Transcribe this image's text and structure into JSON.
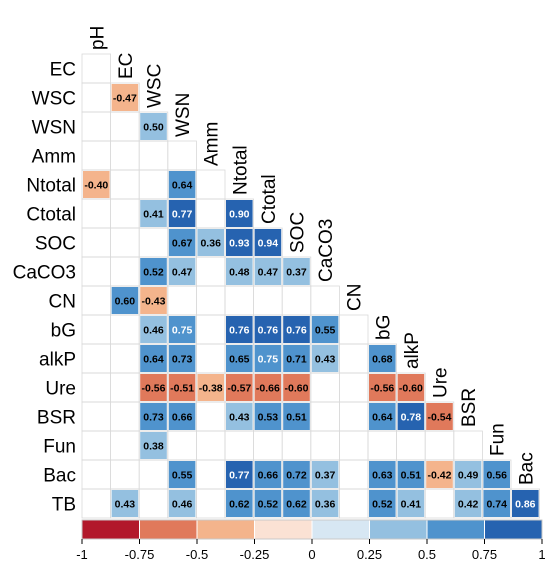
{
  "chart_data": {
    "type": "heatmap",
    "title": "",
    "variables": [
      "pH",
      "EC",
      "WSC",
      "WSN",
      "Amm",
      "Ntotal",
      "Ctotal",
      "SOC",
      "CaCO3",
      "CN",
      "bG",
      "alkP",
      "Ure",
      "BSR",
      "Fun",
      "Bac",
      "TB"
    ],
    "row_labels": [
      "EC",
      "WSC",
      "WSN",
      "Amm",
      "Ntotal",
      "Ctotal",
      "SOC",
      "CaCO3",
      "CN",
      "bG",
      "alkP",
      "Ure",
      "BSR",
      "Fun",
      "Bac",
      "TB"
    ],
    "col_labels": [
      "pH",
      "EC",
      "WSC",
      "WSN",
      "Amm",
      "Ntotal",
      "Ctotal",
      "SOC",
      "CaCO3",
      "CN",
      "bG",
      "alkP",
      "Ure",
      "BSR",
      "Fun",
      "Bac"
    ],
    "layout": "lower-triangle",
    "cells": [
      {
        "row": "WSC",
        "col": "EC",
        "value": -0.47,
        "label": "-0.47"
      },
      {
        "row": "WSN",
        "col": "WSC",
        "value": 0.5,
        "label": "0.50"
      },
      {
        "row": "Ntotal",
        "col": "pH",
        "value": -0.4,
        "label": "-0.40"
      },
      {
        "row": "Ntotal",
        "col": "WSN",
        "value": 0.64,
        "label": "0.64"
      },
      {
        "row": "Ctotal",
        "col": "WSC",
        "value": 0.41,
        "label": "0.41"
      },
      {
        "row": "Ctotal",
        "col": "WSN",
        "value": 0.77,
        "label": "0.77"
      },
      {
        "row": "Ctotal",
        "col": "Ntotal",
        "value": 0.9,
        "label": "0.90"
      },
      {
        "row": "SOC",
        "col": "WSN",
        "value": 0.67,
        "label": "0.67"
      },
      {
        "row": "SOC",
        "col": "Amm",
        "value": 0.36,
        "label": "0.36"
      },
      {
        "row": "SOC",
        "col": "Ntotal",
        "value": 0.93,
        "label": "0.93"
      },
      {
        "row": "SOC",
        "col": "Ctotal",
        "value": 0.94,
        "label": "0.94"
      },
      {
        "row": "CaCO3",
        "col": "WSC",
        "value": 0.52,
        "label": "0.52"
      },
      {
        "row": "CaCO3",
        "col": "WSN",
        "value": 0.47,
        "label": "0.47"
      },
      {
        "row": "CaCO3",
        "col": "Ntotal",
        "value": 0.48,
        "label": "0.48"
      },
      {
        "row": "CaCO3",
        "col": "Ctotal",
        "value": 0.47,
        "label": "0.47"
      },
      {
        "row": "CaCO3",
        "col": "SOC",
        "value": 0.37,
        "label": "0.37"
      },
      {
        "row": "CN",
        "col": "EC",
        "value": 0.6,
        "label": "0.60"
      },
      {
        "row": "CN",
        "col": "WSC",
        "value": -0.43,
        "label": "-0.43"
      },
      {
        "row": "bG",
        "col": "WSC",
        "value": 0.46,
        "label": "0.46"
      },
      {
        "row": "bG",
        "col": "WSN",
        "value": 0.75,
        "label": "0.75"
      },
      {
        "row": "bG",
        "col": "Ntotal",
        "value": 0.76,
        "label": "0.76"
      },
      {
        "row": "bG",
        "col": "Ctotal",
        "value": 0.76,
        "label": "0.76"
      },
      {
        "row": "bG",
        "col": "SOC",
        "value": 0.76,
        "label": "0.76"
      },
      {
        "row": "bG",
        "col": "CaCO3",
        "value": 0.55,
        "label": "0.55"
      },
      {
        "row": "alkP",
        "col": "WSC",
        "value": 0.64,
        "label": "0.64"
      },
      {
        "row": "alkP",
        "col": "WSN",
        "value": 0.73,
        "label": "0.73"
      },
      {
        "row": "alkP",
        "col": "Ntotal",
        "value": 0.65,
        "label": "0.65"
      },
      {
        "row": "alkP",
        "col": "Ctotal",
        "value": 0.75,
        "label": "0.75"
      },
      {
        "row": "alkP",
        "col": "SOC",
        "value": 0.71,
        "label": "0.71"
      },
      {
        "row": "alkP",
        "col": "CaCO3",
        "value": 0.43,
        "label": "0.43"
      },
      {
        "row": "alkP",
        "col": "bG",
        "value": 0.68,
        "label": "0.68"
      },
      {
        "row": "Ure",
        "col": "WSC",
        "value": -0.56,
        "label": "-0.56"
      },
      {
        "row": "Ure",
        "col": "WSN",
        "value": -0.51,
        "label": "-0.51"
      },
      {
        "row": "Ure",
        "col": "Amm",
        "value": -0.38,
        "label": "-0.38"
      },
      {
        "row": "Ure",
        "col": "Ntotal",
        "value": -0.57,
        "label": "-0.57"
      },
      {
        "row": "Ure",
        "col": "Ctotal",
        "value": -0.66,
        "label": "-0.66"
      },
      {
        "row": "Ure",
        "col": "SOC",
        "value": -0.6,
        "label": "-0.60"
      },
      {
        "row": "Ure",
        "col": "bG",
        "value": -0.56,
        "label": "-0.56"
      },
      {
        "row": "Ure",
        "col": "alkP",
        "value": -0.6,
        "label": "-0.60"
      },
      {
        "row": "BSR",
        "col": "WSC",
        "value": 0.73,
        "label": "0.73"
      },
      {
        "row": "BSR",
        "col": "WSN",
        "value": 0.66,
        "label": "0.66"
      },
      {
        "row": "BSR",
        "col": "Ntotal",
        "value": 0.43,
        "label": "0.43"
      },
      {
        "row": "BSR",
        "col": "Ctotal",
        "value": 0.53,
        "label": "0.53"
      },
      {
        "row": "BSR",
        "col": "SOC",
        "value": 0.51,
        "label": "0.51"
      },
      {
        "row": "BSR",
        "col": "bG",
        "value": 0.64,
        "label": "0.64"
      },
      {
        "row": "BSR",
        "col": "alkP",
        "value": 0.78,
        "label": "0.78"
      },
      {
        "row": "BSR",
        "col": "Ure",
        "value": -0.54,
        "label": "-0.54"
      },
      {
        "row": "Fun",
        "col": "WSC",
        "value": 0.38,
        "label": "0.38"
      },
      {
        "row": "Bac",
        "col": "WSN",
        "value": 0.55,
        "label": "0.55"
      },
      {
        "row": "Bac",
        "col": "Ntotal",
        "value": 0.77,
        "label": "0.77"
      },
      {
        "row": "Bac",
        "col": "Ctotal",
        "value": 0.66,
        "label": "0.66"
      },
      {
        "row": "Bac",
        "col": "SOC",
        "value": 0.72,
        "label": "0.72"
      },
      {
        "row": "Bac",
        "col": "CaCO3",
        "value": 0.37,
        "label": "0.37"
      },
      {
        "row": "Bac",
        "col": "bG",
        "value": 0.63,
        "label": "0.63"
      },
      {
        "row": "Bac",
        "col": "alkP",
        "value": 0.51,
        "label": "0.51"
      },
      {
        "row": "Bac",
        "col": "Ure",
        "value": -0.42,
        "label": "-0.42"
      },
      {
        "row": "Bac",
        "col": "BSR",
        "value": 0.49,
        "label": "0.49"
      },
      {
        "row": "Bac",
        "col": "Fun",
        "value": 0.56,
        "label": "0.56"
      },
      {
        "row": "TB",
        "col": "EC",
        "value": 0.43,
        "label": "0.43"
      },
      {
        "row": "TB",
        "col": "WSN",
        "value": 0.46,
        "label": "0.46"
      },
      {
        "row": "TB",
        "col": "Ntotal",
        "value": 0.62,
        "label": "0.62"
      },
      {
        "row": "TB",
        "col": "Ctotal",
        "value": 0.52,
        "label": "0.52"
      },
      {
        "row": "TB",
        "col": "SOC",
        "value": 0.62,
        "label": "0.62"
      },
      {
        "row": "TB",
        "col": "CaCO3",
        "value": 0.36,
        "label": "0.36"
      },
      {
        "row": "TB",
        "col": "bG",
        "value": 0.52,
        "label": "0.52"
      },
      {
        "row": "TB",
        "col": "alkP",
        "value": 0.41,
        "label": "0.41"
      },
      {
        "row": "TB",
        "col": "BSR",
        "value": 0.42,
        "label": "0.42"
      },
      {
        "row": "TB",
        "col": "Fun",
        "value": 0.74,
        "label": "0.74"
      },
      {
        "row": "TB",
        "col": "Bac",
        "value": 0.86,
        "label": "0.86"
      }
    ],
    "colorbar": {
      "range": [
        -1,
        1
      ],
      "ticks": [
        "-1",
        "-0.75",
        "-0.5",
        "-0.25",
        "0",
        "0.25",
        "0.5",
        "0.75",
        "1"
      ],
      "bins": [
        {
          "from": -1,
          "to": -0.75,
          "color": "#b2182b"
        },
        {
          "from": -0.75,
          "to": -0.5,
          "color": "#e0795b"
        },
        {
          "from": -0.5,
          "to": -0.25,
          "color": "#f4b48c"
        },
        {
          "from": -0.25,
          "to": 0,
          "color": "#fbe2d4"
        },
        {
          "from": 0,
          "to": 0.25,
          "color": "#d7e7f3"
        },
        {
          "from": 0.25,
          "to": 0.5,
          "color": "#94c0e0"
        },
        {
          "from": 0.5,
          "to": 0.75,
          "color": "#4f93cd"
        },
        {
          "from": 0.75,
          "to": 1,
          "color": "#2663b0"
        }
      ]
    },
    "grid": true,
    "legend": "bottom"
  }
}
